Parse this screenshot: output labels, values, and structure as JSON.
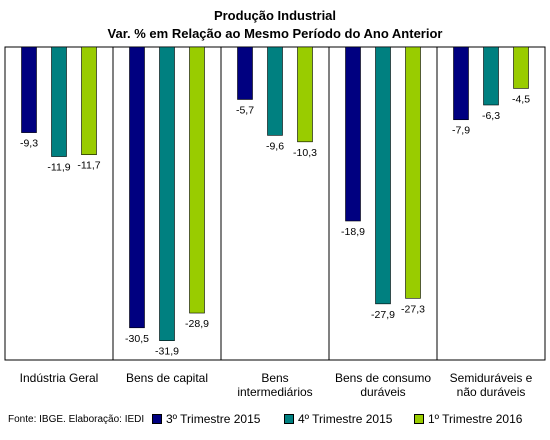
{
  "chart_data": {
    "type": "bar",
    "title": "Produção Industrial",
    "subtitle": "Var. % em Relação ao Mesmo Período do Ano Anterior",
    "categories": [
      "Indústria Geral",
      "Bens de capital",
      "Bens intermediários",
      "Bens de consumo duráveis",
      "Semiduráveis e não duráveis"
    ],
    "category_lines": [
      [
        "Indústria Geral"
      ],
      [
        "Bens de capital"
      ],
      [
        "Bens",
        "intermediários"
      ],
      [
        "Bens de consumo",
        "duráveis"
      ],
      [
        "Semiduráveis e",
        "não duráveis"
      ]
    ],
    "series": [
      {
        "name": "3º Trimestre 2015",
        "color": "#000080",
        "values": [
          -9.3,
          -30.5,
          -5.7,
          -18.9,
          -7.9
        ]
      },
      {
        "name": "4º Trimestre 2015",
        "color": "#008080",
        "values": [
          -11.9,
          -31.9,
          -9.6,
          -27.9,
          -6.3
        ]
      },
      {
        "name": "1º Trimestre 2016",
        "color": "#99cc00",
        "values": [
          -11.7,
          -28.9,
          -10.3,
          -27.3,
          -4.5
        ]
      }
    ],
    "value_labels": [
      [
        "-9,3",
        "-30,5",
        "-5,7",
        "-18,9",
        "-7,9"
      ],
      [
        "-11,9",
        "-31,9",
        "-9,6",
        "-27,9",
        "-6,3"
      ],
      [
        "-11,7",
        "-28,9",
        "-10,3",
        "-27,3",
        "-4,5"
      ]
    ],
    "ylim": [
      -34,
      0
    ],
    "grid": false,
    "legend_position": "bottom"
  },
  "source": "Fonte: IBGE. Elaboração: IEDI"
}
